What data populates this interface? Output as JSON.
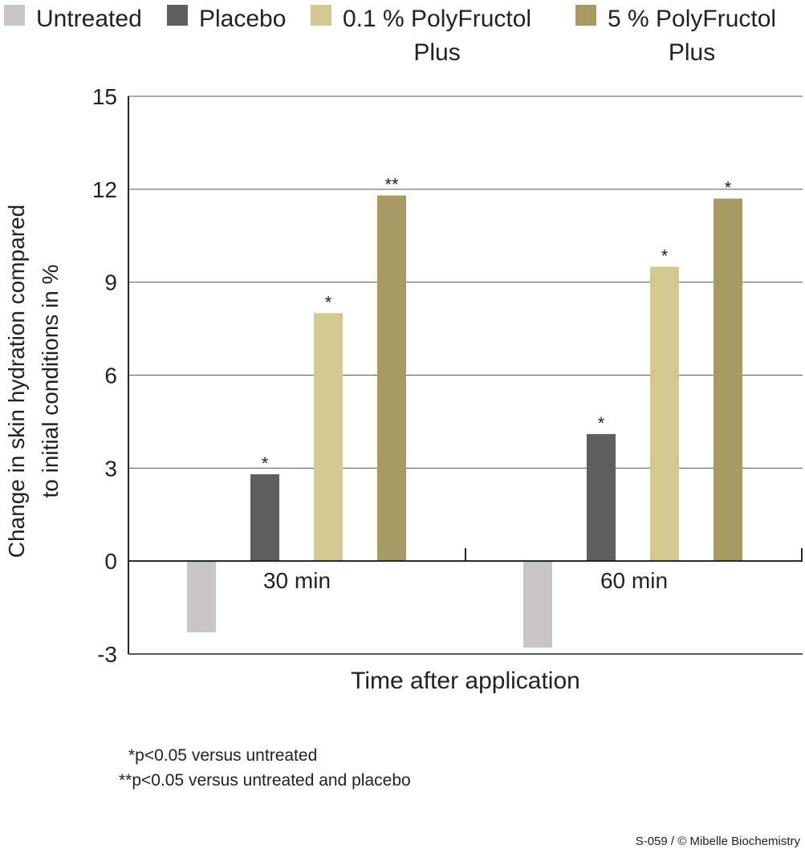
{
  "chart_data": {
    "type": "bar",
    "categories": [
      "30 min",
      "60 min"
    ],
    "series": [
      {
        "name": "Untreated",
        "values": [
          -2.3,
          -2.8
        ],
        "color": "#c9c5c4",
        "significance": [
          "",
          ""
        ]
      },
      {
        "name": "Placebo",
        "values": [
          2.8,
          4.1
        ],
        "color": "#5e5e5c",
        "significance": [
          "*",
          "*"
        ]
      },
      {
        "name": "0.1 % PolyFructol Plus",
        "values": [
          8.0,
          9.5
        ],
        "color": "#d4c892",
        "significance": [
          "*",
          "*"
        ]
      },
      {
        "name": "5 % PolyFructol Plus",
        "values": [
          11.8,
          11.7
        ],
        "color": "#a59a64",
        "significance": [
          "**",
          "*"
        ]
      }
    ],
    "legend_lines": [
      [
        "Untreated"
      ],
      [
        "Placebo"
      ],
      [
        "0.1 % PolyFructol",
        "Plus"
      ],
      [
        "5 % PolyFructol",
        "Plus"
      ]
    ],
    "xlabel": "Time after application",
    "ylabel_lines": [
      "Change in skin hydration compared",
      "to initial conditions in %"
    ],
    "ylim": [
      -3,
      15
    ],
    "yticks": [
      -3,
      0,
      3,
      6,
      9,
      12,
      15
    ],
    "grid": true,
    "legend_position": "top"
  },
  "footnotes": {
    "single": "*p<0.05 versus untreated",
    "double": "**p<0.05 versus untreated and placebo"
  },
  "credit": "S-059 / © Mibelle Biochemistry"
}
